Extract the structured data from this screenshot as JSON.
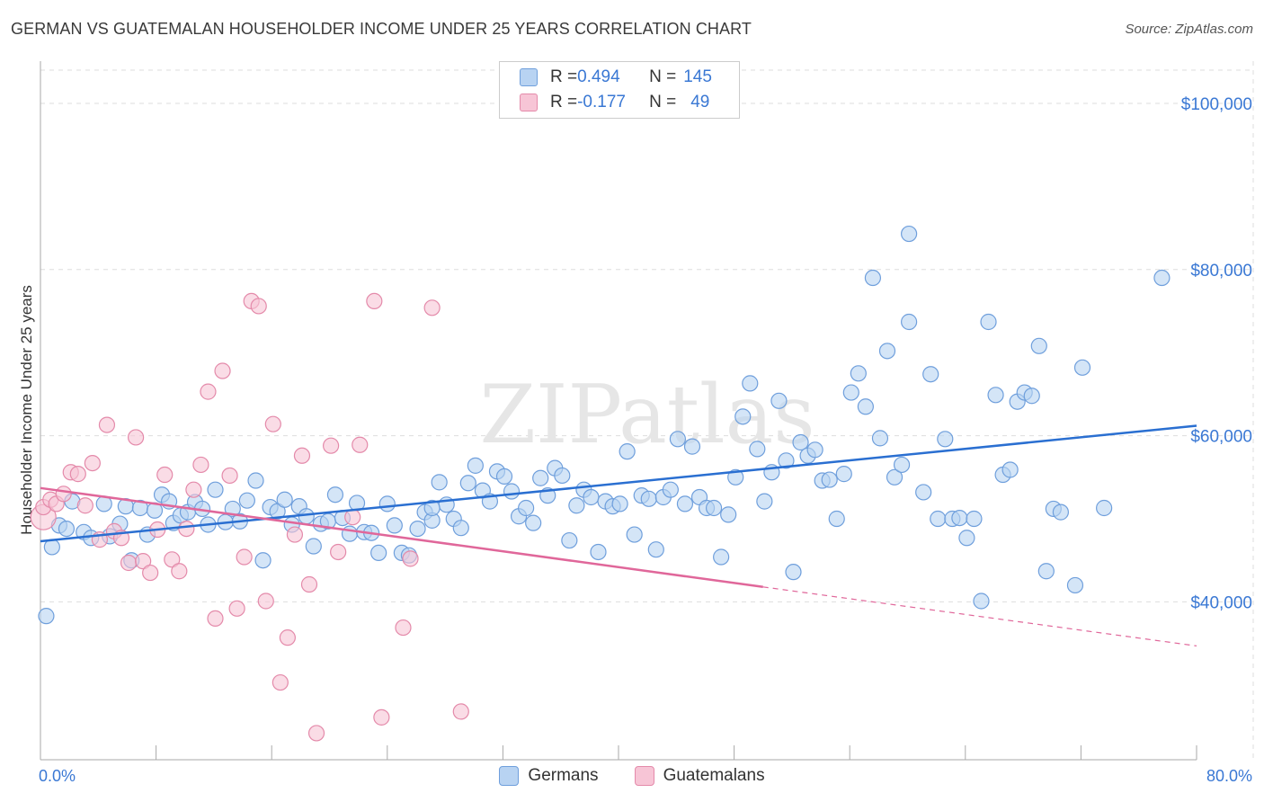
{
  "header": {
    "title": "GERMAN VS GUATEMALAN HOUSEHOLDER INCOME UNDER 25 YEARS CORRELATION CHART",
    "source": "Source: ZipAtlas.com"
  },
  "watermark": "ZIPatlas",
  "legend": {
    "rows": [
      {
        "r_label": "R = ",
        "r_value": "0.494",
        "n_label": "N = ",
        "n_value": "145"
      },
      {
        "r_label": "R = ",
        "r_value": "-0.177",
        "n_label": "N = ",
        "n_value": "49"
      }
    ]
  },
  "colors": {
    "german_fill": "#b8d3f2",
    "german_stroke": "#6f9fdc",
    "german_line": "#2a6fd1",
    "guatemalan_fill": "#f7c5d6",
    "guatemalan_stroke": "#e48aaa",
    "guatemalan_line": "#e0679a",
    "value_text": "#3a78d4",
    "grid": "#dddddd"
  },
  "chart_data": {
    "type": "scatter",
    "title": "GERMAN VS GUATEMALAN HOUSEHOLDER INCOME UNDER 25 YEARS CORRELATION CHART",
    "xlabel": "",
    "ylabel": "Householder Income Under 25 years",
    "xlim": [
      0,
      80
    ],
    "ylim": [
      21000,
      104000
    ],
    "x_tick_labels": [
      "0.0%",
      "80.0%"
    ],
    "y_ticks": [
      40000,
      60000,
      80000,
      100000
    ],
    "y_tick_labels": [
      "$40,000",
      "$60,000",
      "$80,000",
      "$100,000"
    ],
    "grid": true,
    "legend_position": "top-center and bottom",
    "series": [
      {
        "name": "Germans",
        "r": 0.494,
        "n": 145,
        "trend": {
          "x": [
            0,
            80
          ],
          "y": [
            47300,
            61200
          ]
        },
        "points": [
          [
            0.4,
            38300
          ],
          [
            0.8,
            46600
          ],
          [
            1.3,
            49200
          ],
          [
            1.8,
            48800
          ],
          [
            2.2,
            52100
          ],
          [
            3.0,
            48400
          ],
          [
            3.5,
            47700
          ],
          [
            4.4,
            51800
          ],
          [
            4.8,
            47900
          ],
          [
            5.5,
            49400
          ],
          [
            5.9,
            51500
          ],
          [
            6.3,
            45000
          ],
          [
            6.9,
            51300
          ],
          [
            7.4,
            48100
          ],
          [
            7.9,
            51000
          ],
          [
            8.4,
            52900
          ],
          [
            8.9,
            52100
          ],
          [
            9.2,
            49500
          ],
          [
            9.7,
            50400
          ],
          [
            10.2,
            50800
          ],
          [
            10.7,
            52000
          ],
          [
            11.2,
            51200
          ],
          [
            11.6,
            49300
          ],
          [
            12.1,
            53500
          ],
          [
            12.8,
            49600
          ],
          [
            13.3,
            51200
          ],
          [
            13.8,
            49700
          ],
          [
            14.3,
            52200
          ],
          [
            14.9,
            54600
          ],
          [
            15.4,
            45000
          ],
          [
            15.9,
            51400
          ],
          [
            16.4,
            50900
          ],
          [
            16.9,
            52300
          ],
          [
            17.4,
            49300
          ],
          [
            17.9,
            51500
          ],
          [
            18.4,
            50300
          ],
          [
            18.9,
            46700
          ],
          [
            19.4,
            49400
          ],
          [
            19.9,
            49700
          ],
          [
            20.4,
            52900
          ],
          [
            20.9,
            50100
          ],
          [
            21.4,
            48200
          ],
          [
            21.9,
            51900
          ],
          [
            22.4,
            48400
          ],
          [
            22.9,
            48300
          ],
          [
            23.4,
            45900
          ],
          [
            24.0,
            51800
          ],
          [
            24.5,
            49200
          ],
          [
            25.0,
            45900
          ],
          [
            25.5,
            45600
          ],
          [
            26.1,
            48800
          ],
          [
            26.6,
            50800
          ],
          [
            27.1,
            49800
          ],
          [
            27.6,
            54400
          ],
          [
            28.1,
            51700
          ],
          [
            28.6,
            50000
          ],
          [
            29.1,
            48900
          ],
          [
            29.6,
            54300
          ],
          [
            30.1,
            56400
          ],
          [
            30.6,
            53400
          ],
          [
            31.1,
            52100
          ],
          [
            31.6,
            55700
          ],
          [
            32.1,
            55100
          ],
          [
            32.6,
            53300
          ],
          [
            33.1,
            50300
          ],
          [
            33.6,
            51300
          ],
          [
            34.1,
            49500
          ],
          [
            34.6,
            54900
          ],
          [
            35.1,
            52800
          ],
          [
            35.6,
            56100
          ],
          [
            36.1,
            55200
          ],
          [
            36.6,
            47400
          ],
          [
            37.1,
            51600
          ],
          [
            37.6,
            53500
          ],
          [
            38.1,
            52600
          ],
          [
            38.6,
            46000
          ],
          [
            39.1,
            52100
          ],
          [
            39.6,
            51500
          ],
          [
            40.1,
            51800
          ],
          [
            40.6,
            58100
          ],
          [
            41.1,
            48100
          ],
          [
            41.6,
            52800
          ],
          [
            42.1,
            52400
          ],
          [
            42.6,
            46300
          ],
          [
            43.1,
            52600
          ],
          [
            43.6,
            53500
          ],
          [
            44.1,
            59600
          ],
          [
            44.6,
            51800
          ],
          [
            45.1,
            58700
          ],
          [
            45.6,
            52600
          ],
          [
            46.1,
            51300
          ],
          [
            46.6,
            51300
          ],
          [
            47.1,
            45400
          ],
          [
            47.6,
            50500
          ],
          [
            48.1,
            55000
          ],
          [
            48.6,
            62300
          ],
          [
            49.1,
            66300
          ],
          [
            49.6,
            58400
          ],
          [
            50.1,
            52100
          ],
          [
            50.6,
            55600
          ],
          [
            51.1,
            64200
          ],
          [
            51.6,
            57000
          ],
          [
            52.1,
            43600
          ],
          [
            52.6,
            59200
          ],
          [
            53.1,
            57600
          ],
          [
            53.6,
            58300
          ],
          [
            54.1,
            54600
          ],
          [
            54.6,
            54700
          ],
          [
            55.1,
            50000
          ],
          [
            55.6,
            55400
          ],
          [
            56.1,
            65200
          ],
          [
            56.6,
            67500
          ],
          [
            57.1,
            63500
          ],
          [
            57.6,
            79000
          ],
          [
            58.1,
            59700
          ],
          [
            58.6,
            70200
          ],
          [
            59.1,
            55000
          ],
          [
            59.6,
            56500
          ],
          [
            60.1,
            73700
          ],
          [
            61.1,
            53200
          ],
          [
            61.6,
            67400
          ],
          [
            62.1,
            50000
          ],
          [
            62.6,
            59600
          ],
          [
            63.1,
            50000
          ],
          [
            63.6,
            50100
          ],
          [
            64.1,
            47700
          ],
          [
            64.6,
            50000
          ],
          [
            65.1,
            40100
          ],
          [
            65.6,
            73700
          ],
          [
            66.1,
            64900
          ],
          [
            66.6,
            55300
          ],
          [
            67.1,
            55900
          ],
          [
            67.6,
            64100
          ],
          [
            68.1,
            65200
          ],
          [
            68.6,
            64800
          ],
          [
            69.1,
            70800
          ],
          [
            69.6,
            43700
          ],
          [
            70.1,
            51200
          ],
          [
            70.6,
            50800
          ],
          [
            71.6,
            42000
          ],
          [
            72.1,
            68200
          ],
          [
            73.6,
            51300
          ],
          [
            60.1,
            84300
          ],
          [
            77.6,
            79000
          ],
          [
            27.1,
            51300
          ]
        ]
      },
      {
        "name": "Guatemalans",
        "r": -0.177,
        "n": 49,
        "trend": {
          "x": [
            0,
            50
          ],
          "y": [
            53700,
            41800
          ]
        },
        "trend_dashed": {
          "x": [
            50,
            80
          ],
          "y": [
            41800,
            34700
          ]
        },
        "points": [
          [
            0.2,
            51400
          ],
          [
            0.7,
            52300
          ],
          [
            1.1,
            51800
          ],
          [
            1.6,
            53000
          ],
          [
            2.1,
            55600
          ],
          [
            2.6,
            55400
          ],
          [
            3.1,
            51600
          ],
          [
            3.6,
            56700
          ],
          [
            4.1,
            47500
          ],
          [
            4.6,
            61300
          ],
          [
            5.1,
            48500
          ],
          [
            5.6,
            47700
          ],
          [
            6.1,
            44700
          ],
          [
            6.6,
            59800
          ],
          [
            7.1,
            44900
          ],
          [
            7.6,
            43500
          ],
          [
            8.1,
            48700
          ],
          [
            8.6,
            55300
          ],
          [
            9.1,
            45100
          ],
          [
            9.6,
            43700
          ],
          [
            10.1,
            48800
          ],
          [
            10.6,
            53500
          ],
          [
            11.1,
            56500
          ],
          [
            11.6,
            65300
          ],
          [
            12.1,
            38000
          ],
          [
            12.6,
            67800
          ],
          [
            13.1,
            55200
          ],
          [
            13.6,
            39200
          ],
          [
            14.1,
            45400
          ],
          [
            14.6,
            76200
          ],
          [
            15.1,
            75600
          ],
          [
            15.6,
            40100
          ],
          [
            16.1,
            61400
          ],
          [
            16.6,
            30300
          ],
          [
            17.1,
            35700
          ],
          [
            17.6,
            48100
          ],
          [
            18.1,
            57600
          ],
          [
            18.6,
            42100
          ],
          [
            19.1,
            24200
          ],
          [
            20.1,
            58800
          ],
          [
            20.6,
            46000
          ],
          [
            21.6,
            50200
          ],
          [
            22.1,
            58900
          ],
          [
            23.1,
            76200
          ],
          [
            23.6,
            26100
          ],
          [
            25.1,
            36900
          ],
          [
            25.6,
            45200
          ],
          [
            27.1,
            75400
          ],
          [
            29.1,
            26800
          ]
        ]
      }
    ]
  }
}
